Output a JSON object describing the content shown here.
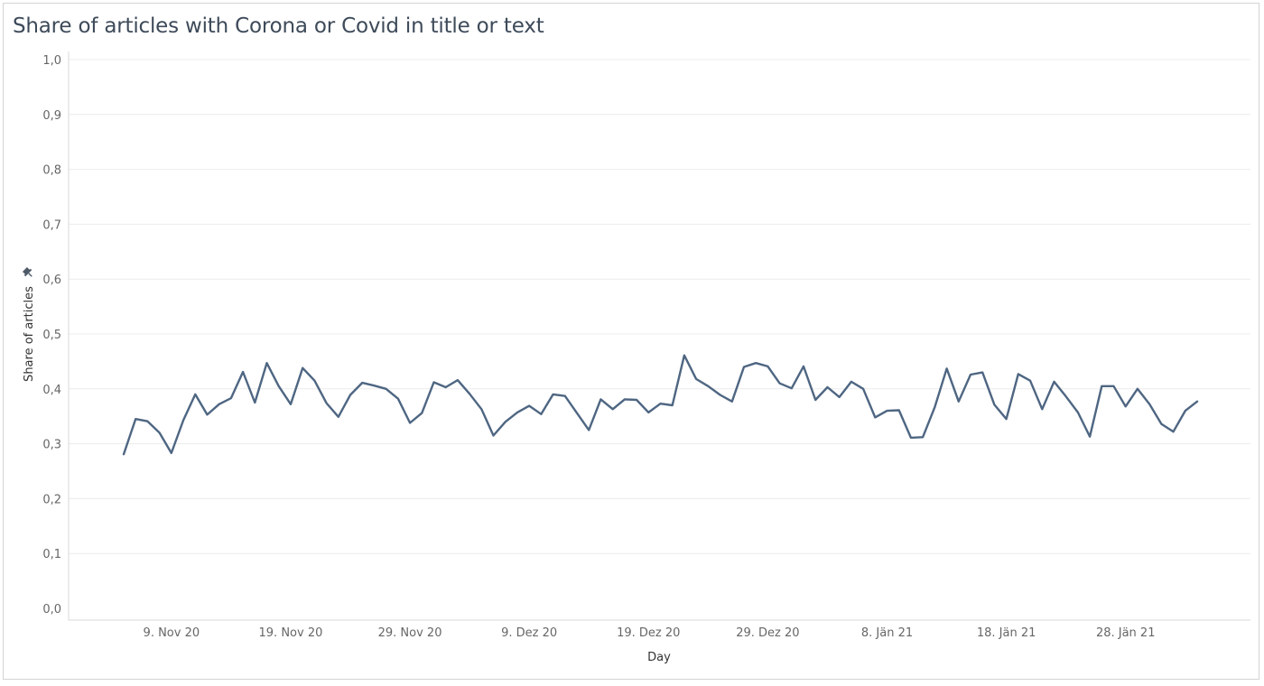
{
  "title": "Share of articles with Corona or Covid in title or text",
  "pin_icon": "pin-icon",
  "colors": {
    "line": "#4e6682",
    "grid": "#ececec",
    "border": "#d4d4d4",
    "title": "#3d4a59"
  },
  "chart_data": {
    "type": "line",
    "title": "Share of articles with Corona or Covid in title or text",
    "xlabel": "Day",
    "ylabel": "Share of articles",
    "ylim": [
      0,
      1
    ],
    "grid": true,
    "y_ticks": [
      "0,0",
      "0,1",
      "0,2",
      "0,3",
      "0,4",
      "0,5",
      "0,6",
      "0,7",
      "0,8",
      "0,9",
      "1,0"
    ],
    "x_ticks": [
      {
        "label": "9. Nov 20",
        "date": "2020-11-09"
      },
      {
        "label": "19. Nov 20",
        "date": "2020-11-19"
      },
      {
        "label": "29. Nov 20",
        "date": "2020-11-29"
      },
      {
        "label": "9. Dez 20",
        "date": "2020-12-09"
      },
      {
        "label": "19. Dez 20",
        "date": "2020-12-19"
      },
      {
        "label": "29. Dez 20",
        "date": "2020-12-29"
      },
      {
        "label": "8. Jän 21",
        "date": "2021-01-08"
      },
      {
        "label": "18. Jän 21",
        "date": "2021-01-18"
      },
      {
        "label": "28. Jän 21",
        "date": "2021-01-28"
      }
    ],
    "series": [
      {
        "x": [
          "2020-11-05",
          "2020-11-06",
          "2020-11-07",
          "2020-11-08",
          "2020-11-09",
          "2020-11-10",
          "2020-11-11",
          "2020-11-12",
          "2020-11-13",
          "2020-11-14",
          "2020-11-15",
          "2020-11-16",
          "2020-11-17",
          "2020-11-18",
          "2020-11-19",
          "2020-11-20",
          "2020-11-21",
          "2020-11-22",
          "2020-11-23",
          "2020-11-24",
          "2020-11-25",
          "2020-11-26",
          "2020-11-27",
          "2020-11-28",
          "2020-11-29",
          "2020-11-30",
          "2020-12-01",
          "2020-12-02",
          "2020-12-03",
          "2020-12-04",
          "2020-12-05",
          "2020-12-06",
          "2020-12-07",
          "2020-12-08",
          "2020-12-09",
          "2020-12-10",
          "2020-12-11",
          "2020-12-12",
          "2020-12-13",
          "2020-12-14",
          "2020-12-15",
          "2020-12-16",
          "2020-12-17",
          "2020-12-18",
          "2020-12-19",
          "2020-12-20",
          "2020-12-21",
          "2020-12-22",
          "2020-12-23",
          "2020-12-24",
          "2020-12-25",
          "2020-12-26",
          "2020-12-27",
          "2020-12-28",
          "2020-12-29",
          "2020-12-30",
          "2020-12-31",
          "2021-01-01",
          "2021-01-02",
          "2021-01-03",
          "2021-01-04",
          "2021-01-05",
          "2021-01-06",
          "2021-01-07",
          "2021-01-08",
          "2021-01-09",
          "2021-01-10",
          "2021-01-11",
          "2021-01-12",
          "2021-01-13",
          "2021-01-14",
          "2021-01-15",
          "2021-01-16",
          "2021-01-17",
          "2021-01-18",
          "2021-01-19",
          "2021-01-20",
          "2021-01-21",
          "2021-01-22",
          "2021-01-23",
          "2021-01-24",
          "2021-01-25",
          "2021-01-26",
          "2021-01-27",
          "2021-01-28",
          "2021-01-29",
          "2021-01-30",
          "2021-01-31",
          "2021-02-01",
          "2021-02-02",
          "2021-02-03"
        ],
        "values": [
          0.281,
          0.345,
          0.341,
          0.32,
          0.283,
          0.343,
          0.39,
          0.353,
          0.372,
          0.383,
          0.431,
          0.375,
          0.447,
          0.405,
          0.372,
          0.438,
          0.415,
          0.374,
          0.349,
          0.389,
          0.411,
          0.406,
          0.4,
          0.382,
          0.338,
          0.356,
          0.412,
          0.403,
          0.416,
          0.391,
          0.363,
          0.315,
          0.34,
          0.357,
          0.369,
          0.354,
          0.39,
          0.387,
          0.356,
          0.325,
          0.381,
          0.363,
          0.381,
          0.38,
          0.357,
          0.373,
          0.37,
          0.461,
          0.418,
          0.405,
          0.389,
          0.377,
          0.44,
          0.447,
          0.441,
          0.41,
          0.401,
          0.441,
          0.38,
          0.403,
          0.385,
          0.413,
          0.4,
          0.348,
          0.36,
          0.361,
          0.311,
          0.312,
          0.367,
          0.437,
          0.377,
          0.426,
          0.43,
          0.371,
          0.345,
          0.427,
          0.415,
          0.363,
          0.413,
          0.386,
          0.357,
          0.313,
          0.405,
          0.405,
          0.368,
          0.4,
          0.372,
          0.336,
          0.322,
          0.36,
          0.377
        ]
      }
    ]
  }
}
